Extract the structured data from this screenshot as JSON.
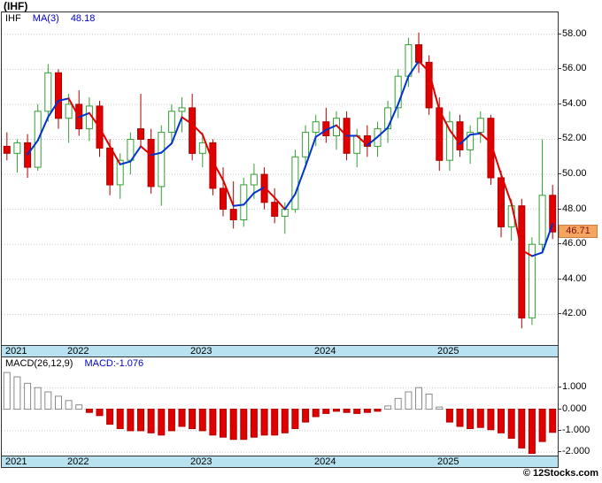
{
  "header": {
    "title": "(IHF)"
  },
  "main_chart": {
    "legend": {
      "symbol": "IHF",
      "ma_label": "MA(3)",
      "ma_value": "48.18"
    }
  },
  "macd_chart": {
    "legend": {
      "label": "MACD(26,12,9)",
      "value_label": "MACD:-1.076"
    }
  },
  "price_badge": {
    "value": "46.71",
    "price": 46.71
  },
  "footer": {
    "credit": "© 12Stocks.com"
  },
  "colors": {
    "up_fill": "#ffffff",
    "up_border": "#33a033",
    "down_fill": "#e00000",
    "down_border": "#b00000",
    "ma_up": "#0033cc",
    "ma_down": "#e00000",
    "band_bg": "#b9e2f1",
    "badge_bg": "#f5a55f",
    "badge_text": "#7a1010",
    "grid": "#c9c9c9",
    "frame": "#333333",
    "macd_pos_fill": "#ffffff",
    "macd_pos_border": "#8a8a8a",
    "macd_neg_fill": "#e00000",
    "macd_neg_border": "#b00000",
    "legend_blue": "#0000cc"
  },
  "chart_data": {
    "type": "candlestick",
    "symbol": "IHF",
    "title": "(IHF)",
    "x_unit": "month",
    "overlay": {
      "name": "MA(3)",
      "period": 3,
      "last_value": 48.18
    },
    "last_close": 46.71,
    "price_axis": {
      "ylim": [
        40.25,
        59.25
      ],
      "ticks": [
        58,
        56,
        54,
        52,
        50,
        48,
        46,
        44,
        42
      ],
      "tick_labels": [
        "58.00",
        "56.00",
        "54.00",
        "52.00",
        "50.00",
        "48.00",
        "46.00",
        "44.00",
        "42.00"
      ]
    },
    "macd_axis": {
      "ylim": [
        -2.15,
        2.4
      ],
      "ticks": [
        1,
        0,
        -1,
        -2
      ],
      "tick_labels": [
        "1.000",
        "0.000",
        "-1.000",
        "-2.000"
      ]
    },
    "years": [
      {
        "label": "2021",
        "index": 0
      },
      {
        "label": "2022",
        "index": 6
      },
      {
        "label": "2023",
        "index": 18
      },
      {
        "label": "2024",
        "index": 30
      },
      {
        "label": "2025",
        "index": 42
      }
    ],
    "candles": [
      [
        "2021-07",
        51.6,
        52.4,
        50.8,
        51.2
      ],
      [
        "2021-08",
        51.2,
        52.0,
        50.1,
        51.8
      ],
      [
        "2021-09",
        51.8,
        52.3,
        49.8,
        50.4
      ],
      [
        "2021-10",
        50.4,
        54.0,
        50.2,
        53.6
      ],
      [
        "2021-11",
        53.6,
        56.3,
        53.0,
        55.8
      ],
      [
        "2021-12",
        55.8,
        56.0,
        52.6,
        53.2
      ],
      [
        "2022-01",
        53.2,
        54.6,
        51.8,
        54.0
      ],
      [
        "2022-02",
        54.0,
        54.8,
        52.2,
        52.6
      ],
      [
        "2022-03",
        52.6,
        54.4,
        51.9,
        53.9
      ],
      [
        "2022-04",
        53.9,
        54.2,
        51.0,
        51.5
      ],
      [
        "2022-05",
        51.5,
        52.0,
        48.8,
        49.4
      ],
      [
        "2022-06",
        49.4,
        51.2,
        48.6,
        50.8
      ],
      [
        "2022-07",
        50.8,
        52.4,
        50.0,
        52.0
      ],
      [
        "2022-08",
        52.6,
        54.6,
        51.6,
        52.0
      ],
      [
        "2022-09",
        52.0,
        52.6,
        48.9,
        49.3
      ],
      [
        "2022-10",
        49.3,
        52.8,
        48.2,
        52.4
      ],
      [
        "2022-11",
        52.4,
        54.0,
        51.8,
        53.6
      ],
      [
        "2022-12",
        53.6,
        54.4,
        52.4,
        53.8
      ],
      [
        "2023-01",
        53.8,
        54.6,
        50.8,
        51.2
      ],
      [
        "2023-02",
        51.2,
        52.4,
        50.4,
        51.8
      ],
      [
        "2023-03",
        51.8,
        52.0,
        48.8,
        49.2
      ],
      [
        "2023-04",
        49.2,
        50.4,
        47.6,
        48.0
      ],
      [
        "2023-05",
        48.0,
        49.6,
        46.9,
        47.4
      ],
      [
        "2023-06",
        47.4,
        49.8,
        47.0,
        49.4
      ],
      [
        "2023-07",
        49.4,
        50.6,
        48.6,
        50.0
      ],
      [
        "2023-08",
        50.0,
        50.4,
        48.0,
        48.4
      ],
      [
        "2023-09",
        48.4,
        49.2,
        47.2,
        47.6
      ],
      [
        "2023-10",
        47.6,
        48.4,
        46.6,
        48.0
      ],
      [
        "2023-11",
        48.0,
        51.4,
        47.8,
        51.0
      ],
      [
        "2023-12",
        51.0,
        52.8,
        50.6,
        52.4
      ],
      [
        "2024-01",
        52.4,
        53.4,
        51.6,
        53.0
      ],
      [
        "2024-02",
        53.0,
        53.8,
        51.8,
        52.2
      ],
      [
        "2024-03",
        52.2,
        53.6,
        51.4,
        53.2
      ],
      [
        "2024-04",
        53.2,
        53.6,
        50.8,
        51.2
      ],
      [
        "2024-05",
        51.2,
        52.6,
        50.4,
        52.2
      ],
      [
        "2024-06",
        52.2,
        52.8,
        51.0,
        51.6
      ],
      [
        "2024-07",
        51.6,
        53.0,
        51.0,
        52.6
      ],
      [
        "2024-08",
        52.6,
        54.2,
        51.8,
        53.8
      ],
      [
        "2024-09",
        53.8,
        56.0,
        53.2,
        55.6
      ],
      [
        "2024-10",
        55.6,
        57.8,
        55.0,
        57.4
      ],
      [
        "2024-11",
        57.4,
        58.1,
        55.8,
        56.4
      ],
      [
        "2024-12",
        56.4,
        56.8,
        53.4,
        53.8
      ],
      [
        "2025-01",
        53.8,
        54.4,
        50.2,
        50.8
      ],
      [
        "2025-02",
        50.8,
        53.6,
        50.2,
        53.0
      ],
      [
        "2025-03",
        53.0,
        53.4,
        51.0,
        51.4
      ],
      [
        "2025-04",
        51.4,
        52.8,
        50.6,
        52.4
      ],
      [
        "2025-05",
        52.4,
        53.6,
        51.8,
        53.2
      ],
      [
        "2025-06",
        53.2,
        53.4,
        49.4,
        49.8
      ],
      [
        "2025-07",
        49.8,
        50.2,
        46.4,
        47.0
      ],
      [
        "2025-08",
        47.0,
        48.6,
        46.2,
        48.2
      ],
      [
        "2025-09",
        48.2,
        48.6,
        41.2,
        41.8
      ],
      [
        "2025-10",
        41.8,
        46.4,
        41.4,
        46.0
      ],
      [
        "2025-11",
        46.0,
        52.0,
        45.6,
        48.8
      ],
      [
        "2025-12",
        48.8,
        49.4,
        46.3,
        46.71
      ]
    ],
    "macd": {
      "name": "MACD(26,12,9)",
      "last_value": -1.076,
      "histogram": [
        1.7,
        1.5,
        1.2,
        1.0,
        0.8,
        0.6,
        0.4,
        0.2,
        -0.15,
        -0.3,
        -0.7,
        -0.9,
        -1.0,
        -1.0,
        -1.1,
        -1.2,
        -1.0,
        -0.8,
        -0.9,
        -1.0,
        -1.2,
        -1.3,
        -1.4,
        -1.4,
        -1.3,
        -1.2,
        -1.2,
        -1.1,
        -0.9,
        -0.6,
        -0.35,
        -0.2,
        -0.1,
        -0.15,
        -0.2,
        -0.15,
        -0.1,
        0.15,
        0.5,
        0.8,
        1.0,
        0.7,
        0.1,
        -0.6,
        -0.8,
        -0.9,
        -0.85,
        -0.95,
        -1.1,
        -1.35,
        -1.8,
        -2.05,
        -1.5,
        -1.076
      ]
    }
  }
}
